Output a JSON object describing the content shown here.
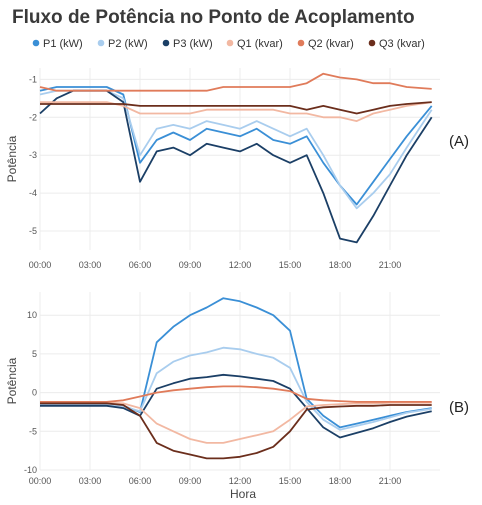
{
  "title": "Fluxo de Potência no Ponto de Acoplamento",
  "chart_data": {
    "type": "line",
    "title": "Fluxo de Potência no Ponto de Acoplamento",
    "legend": {
      "position": "top",
      "entries": [
        {
          "name": "P1 (kW)",
          "color": "#3a8fd6"
        },
        {
          "name": "P2 (kW)",
          "color": "#a9cdee"
        },
        {
          "name": "P3 (kW)",
          "color": "#1b3f66"
        },
        {
          "name": "Q1 (kvar)",
          "color": "#f2b8a2"
        },
        {
          "name": "Q2 (kvar)",
          "color": "#e07b5a"
        },
        {
          "name": "Q3 (kvar)",
          "color": "#6b2e1c"
        }
      ]
    },
    "xlabel": "Hora",
    "x_ticks": [
      "00:00",
      "03:00",
      "06:00",
      "09:00",
      "12:00",
      "15:00",
      "18:00",
      "21:00"
    ],
    "x_hours": [
      0,
      1,
      2,
      3,
      4,
      5,
      6,
      7,
      8,
      9,
      10,
      11,
      12,
      13,
      14,
      15,
      16,
      17,
      18,
      19,
      20,
      21,
      22,
      23.5
    ],
    "panels": [
      {
        "tag": "(A)",
        "ylabel": "Potência",
        "ylim": [
          -5.5,
          -0.7
        ],
        "y_ticks": [
          -1,
          -2,
          -3,
          -4,
          -5
        ],
        "grid": true,
        "series": [
          {
            "name": "P1 (kW)",
            "color": "#3a8fd6",
            "values": [
              -1.3,
              -1.2,
              -1.2,
              -1.2,
              -1.2,
              -1.4,
              -3.2,
              -2.6,
              -2.4,
              -2.6,
              -2.3,
              -2.4,
              -2.5,
              -2.3,
              -2.6,
              -2.7,
              -2.5,
              -3.2,
              -3.8,
              -4.3,
              -3.7,
              -3.1,
              -2.5,
              -1.7
            ]
          },
          {
            "name": "P2 (kW)",
            "color": "#a9cdee",
            "values": [
              -1.4,
              -1.3,
              -1.3,
              -1.3,
              -1.3,
              -1.5,
              -3.0,
              -2.3,
              -2.2,
              -2.3,
              -2.1,
              -2.2,
              -2.3,
              -2.1,
              -2.3,
              -2.5,
              -2.3,
              -3.0,
              -3.8,
              -4.4,
              -4.0,
              -3.5,
              -2.8,
              -1.8
            ]
          },
          {
            "name": "P3 (kW)",
            "color": "#1b3f66",
            "values": [
              -1.9,
              -1.5,
              -1.3,
              -1.3,
              -1.3,
              -1.6,
              -3.7,
              -2.9,
              -2.8,
              -3.0,
              -2.7,
              -2.8,
              -2.9,
              -2.7,
              -3.0,
              -3.2,
              -3.0,
              -4.0,
              -5.2,
              -5.3,
              -4.6,
              -3.8,
              -3.0,
              -2.0
            ]
          },
          {
            "name": "Q1 (kvar)",
            "color": "#f2b8a2",
            "values": [
              -1.6,
              -1.6,
              -1.6,
              -1.6,
              -1.6,
              -1.7,
              -1.9,
              -1.9,
              -1.9,
              -1.9,
              -1.8,
              -1.8,
              -1.8,
              -1.8,
              -1.8,
              -1.9,
              -1.9,
              -2.0,
              -2.0,
              -2.1,
              -1.9,
              -1.8,
              -1.7,
              -1.6
            ]
          },
          {
            "name": "Q2 (kvar)",
            "color": "#e07b5a",
            "values": [
              -1.2,
              -1.3,
              -1.3,
              -1.3,
              -1.3,
              -1.3,
              -1.3,
              -1.3,
              -1.3,
              -1.3,
              -1.3,
              -1.2,
              -1.2,
              -1.2,
              -1.2,
              -1.2,
              -1.1,
              -0.85,
              -0.95,
              -1.0,
              -1.1,
              -1.1,
              -1.2,
              -1.25
            ]
          },
          {
            "name": "Q3 (kvar)",
            "color": "#6b2e1c",
            "values": [
              -1.65,
              -1.65,
              -1.65,
              -1.65,
              -1.65,
              -1.65,
              -1.7,
              -1.7,
              -1.7,
              -1.7,
              -1.7,
              -1.7,
              -1.7,
              -1.7,
              -1.7,
              -1.7,
              -1.8,
              -1.7,
              -1.8,
              -1.9,
              -1.8,
              -1.7,
              -1.65,
              -1.6
            ]
          }
        ]
      },
      {
        "tag": "(B)",
        "ylabel": "Potência",
        "ylim": [
          -10,
          13
        ],
        "y_ticks": [
          10,
          5,
          0,
          -5,
          -10
        ],
        "grid": true,
        "series": [
          {
            "name": "P1 (kW)",
            "color": "#3a8fd6",
            "values": [
              -1.5,
              -1.5,
              -1.5,
              -1.5,
              -1.5,
              -1.7,
              -2.5,
              6.5,
              8.5,
              10.0,
              11.0,
              12.2,
              11.8,
              11.0,
              10.0,
              8.0,
              -0.8,
              -3.0,
              -4.5,
              -4.0,
              -3.5,
              -3.0,
              -2.5,
              -2.0
            ]
          },
          {
            "name": "P2 (kW)",
            "color": "#a9cdee",
            "values": [
              -1.6,
              -1.6,
              -1.6,
              -1.6,
              -1.6,
              -1.8,
              -2.4,
              2.5,
              4.0,
              4.8,
              5.2,
              5.8,
              5.6,
              5.0,
              4.5,
              3.2,
              -1.2,
              -3.5,
              -4.8,
              -4.3,
              -3.8,
              -3.2,
              -2.6,
              -2.1
            ]
          },
          {
            "name": "P3 (kW)",
            "color": "#1b3f66",
            "values": [
              -1.7,
              -1.7,
              -1.7,
              -1.7,
              -1.7,
              -2.0,
              -3.0,
              0.5,
              1.2,
              1.8,
              2.0,
              2.3,
              2.1,
              1.8,
              1.5,
              0.5,
              -2.0,
              -4.5,
              -5.8,
              -5.2,
              -4.6,
              -3.8,
              -3.1,
              -2.4
            ]
          },
          {
            "name": "Q1 (kvar)",
            "color": "#f2b8a2",
            "values": [
              -1.3,
              -1.3,
              -1.3,
              -1.3,
              -1.3,
              -1.4,
              -2.0,
              -4.0,
              -5.0,
              -6.0,
              -6.5,
              -6.5,
              -6.0,
              -5.5,
              -5.0,
              -3.5,
              -1.8,
              -1.6,
              -1.5,
              -1.4,
              -1.4,
              -1.3,
              -1.3,
              -1.3
            ]
          },
          {
            "name": "Q2 (kvar)",
            "color": "#e07b5a",
            "values": [
              -1.2,
              -1.2,
              -1.2,
              -1.2,
              -1.2,
              -1.0,
              -0.5,
              0.0,
              0.3,
              0.5,
              0.7,
              0.8,
              0.8,
              0.7,
              0.5,
              0.2,
              -0.8,
              -1.0,
              -1.1,
              -1.2,
              -1.2,
              -1.2,
              -1.2,
              -1.2
            ]
          },
          {
            "name": "Q3 (kvar)",
            "color": "#6b2e1c",
            "values": [
              -1.4,
              -1.4,
              -1.4,
              -1.4,
              -1.4,
              -1.6,
              -3.0,
              -6.5,
              -7.5,
              -8.0,
              -8.5,
              -8.5,
              -8.3,
              -7.8,
              -7.0,
              -5.0,
              -2.2,
              -1.9,
              -1.8,
              -1.7,
              -1.7,
              -1.6,
              -1.6,
              -1.6
            ]
          }
        ]
      }
    ]
  }
}
